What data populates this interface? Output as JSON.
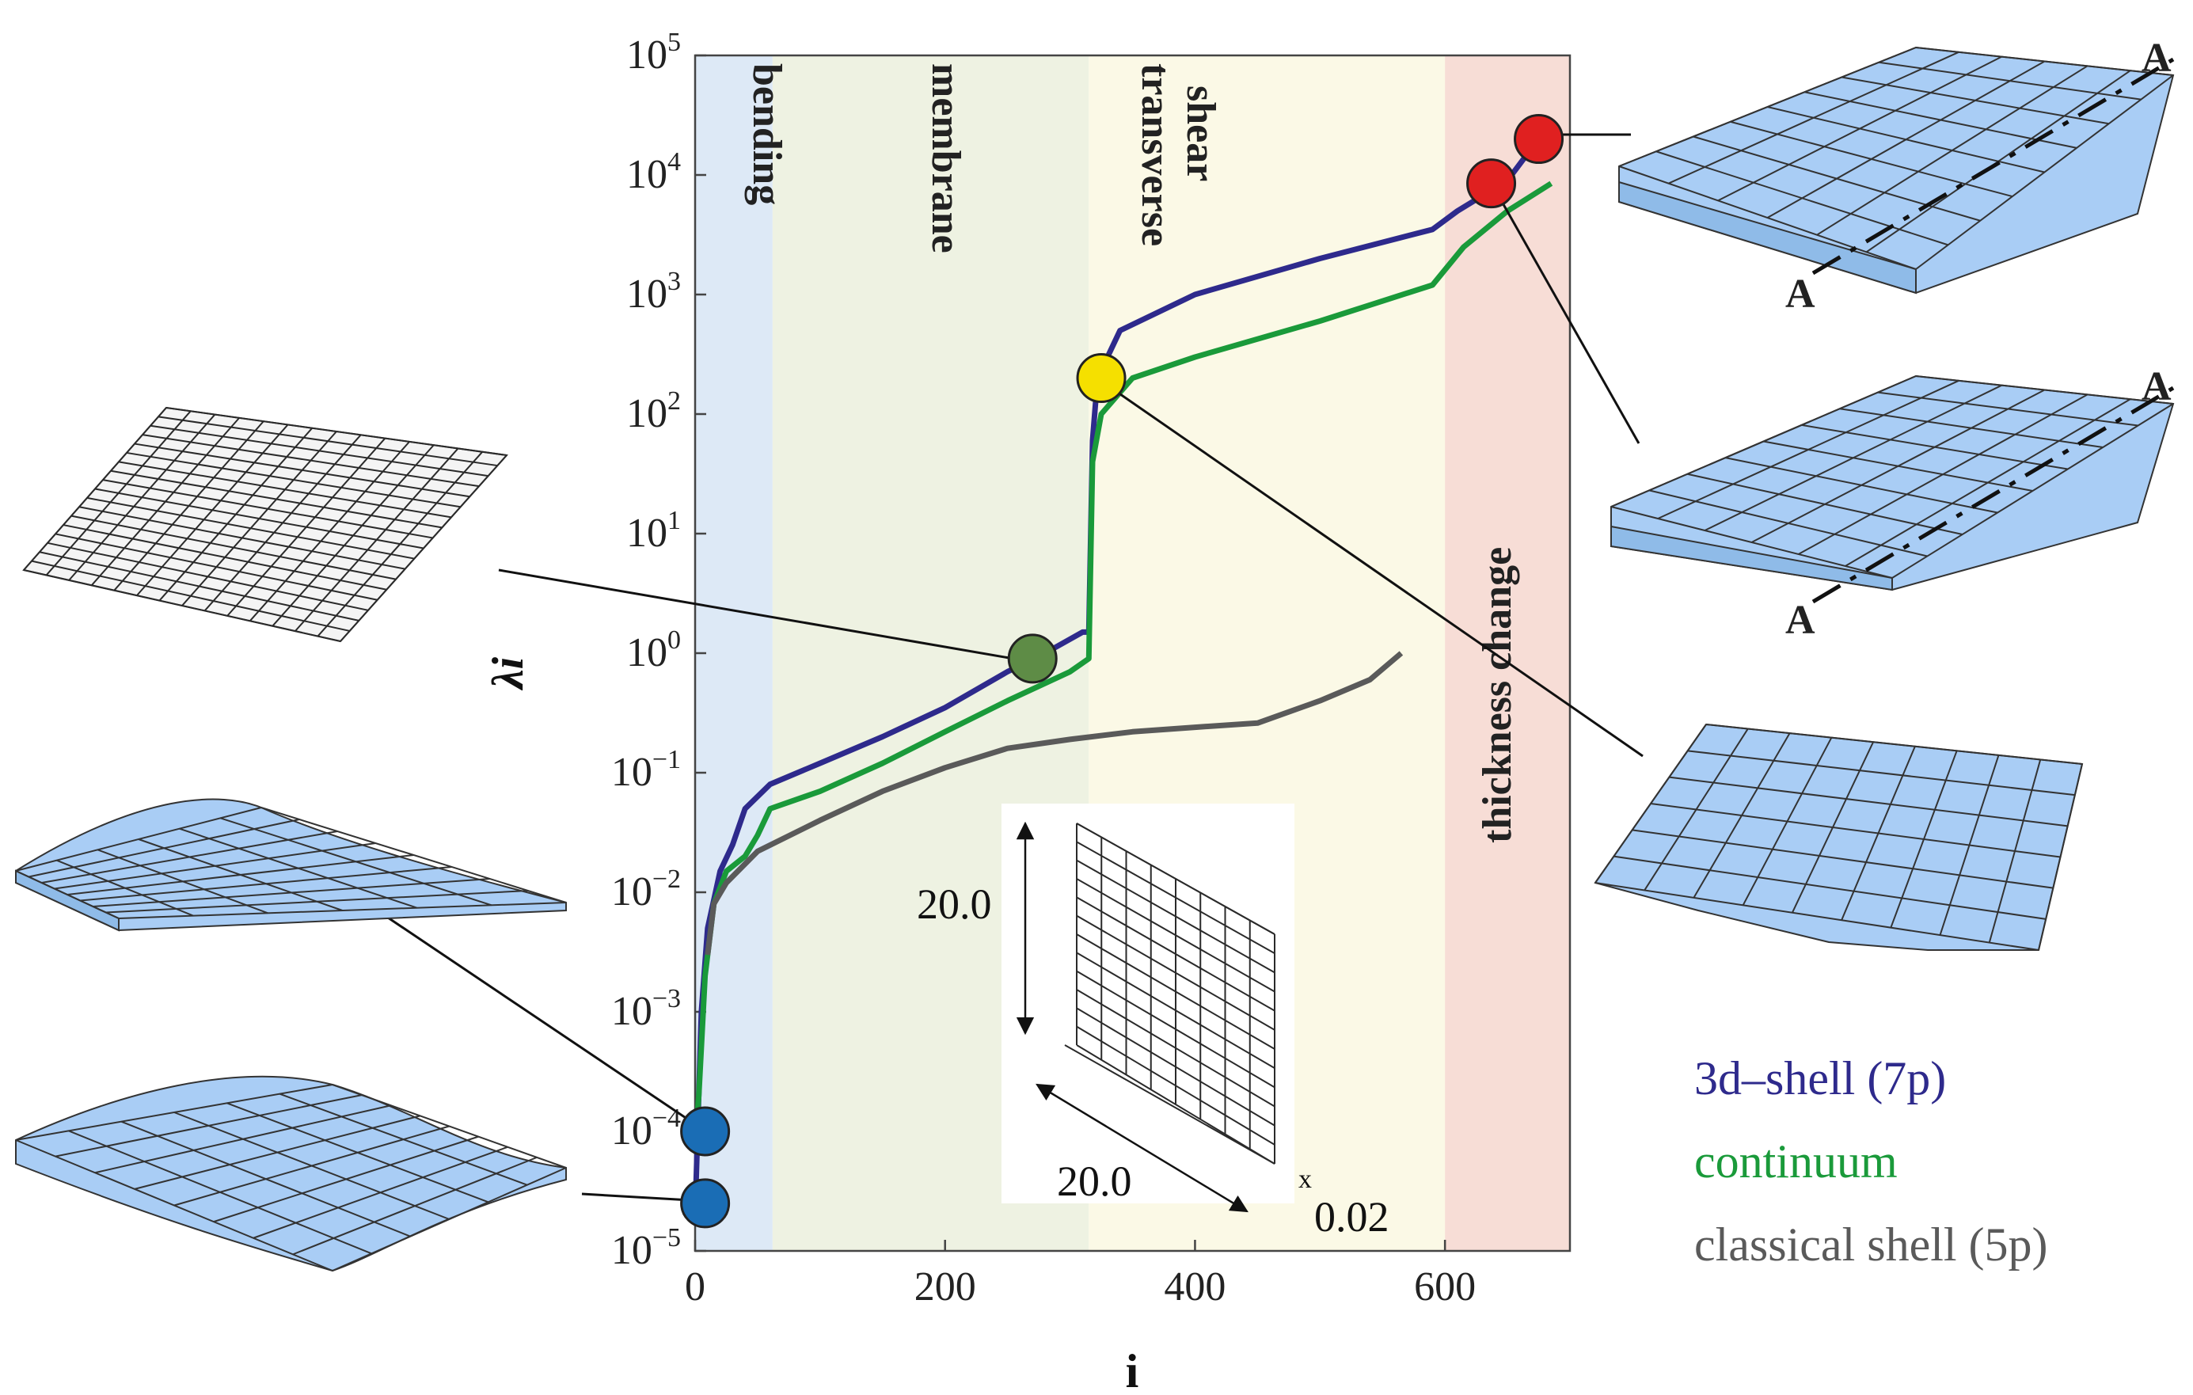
{
  "chart_data": {
    "type": "line",
    "xlabel": "i",
    "ylabel": "λi",
    "xlim": [
      0,
      700
    ],
    "ylim": [
      1e-05,
      100000
    ],
    "yscale": "log",
    "grid": false,
    "x_ticks": [
      "0",
      "200",
      "400",
      "600"
    ],
    "y_ticks": [
      {
        "base": "10",
        "exp": "5"
      },
      {
        "base": "10",
        "exp": "4"
      },
      {
        "base": "10",
        "exp": "3"
      },
      {
        "base": "10",
        "exp": "2"
      },
      {
        "base": "10",
        "exp": "1"
      },
      {
        "base": "10",
        "exp": "0"
      },
      {
        "base": "10",
        "exp": "−1"
      },
      {
        "base": "10",
        "exp": "−2"
      },
      {
        "base": "10",
        "exp": "−3"
      },
      {
        "base": "10",
        "exp": "−4"
      },
      {
        "base": "10",
        "exp": "−5"
      }
    ],
    "regions": [
      {
        "label": "bending",
        "x_range": [
          0,
          62
        ],
        "color": "#dde9f6"
      },
      {
        "label": "membrane",
        "x_range": [
          62,
          315
        ],
        "color": "#eef2e2"
      },
      {
        "label": "transverse",
        "label2": "shear",
        "x_range": [
          315,
          600
        ],
        "color": "#fbf9e6"
      },
      {
        "label": "thickness change",
        "x_range": [
          600,
          700
        ],
        "color": "#f7ddd6"
      }
    ],
    "series": [
      {
        "name": "3d–shell (7p)",
        "color": "#2e2a8c",
        "points": [
          [
            0,
            2e-05
          ],
          [
            2,
            0.0001
          ],
          [
            5,
            0.001
          ],
          [
            10,
            0.005
          ],
          [
            20,
            0.015
          ],
          [
            30,
            0.025
          ],
          [
            40,
            0.05
          ],
          [
            60,
            0.08
          ],
          [
            100,
            0.12
          ],
          [
            150,
            0.2
          ],
          [
            200,
            0.35
          ],
          [
            250,
            0.7
          ],
          [
            280,
            1.0
          ],
          [
            310,
            1.5
          ],
          [
            315,
            1.5
          ],
          [
            318,
            60
          ],
          [
            322,
            200
          ],
          [
            340,
            500
          ],
          [
            400,
            1000
          ],
          [
            500,
            2000
          ],
          [
            590,
            3500
          ],
          [
            610,
            5000
          ],
          [
            650,
            9000
          ],
          [
            675,
            20000
          ]
        ]
      },
      {
        "name": "continuum",
        "color": "#1a9a3a",
        "points": [
          [
            0,
            8e-05
          ],
          [
            3,
            0.0002
          ],
          [
            8,
            0.002
          ],
          [
            15,
            0.008
          ],
          [
            25,
            0.015
          ],
          [
            40,
            0.02
          ],
          [
            50,
            0.03
          ],
          [
            60,
            0.05
          ],
          [
            100,
            0.07
          ],
          [
            150,
            0.12
          ],
          [
            200,
            0.22
          ],
          [
            250,
            0.4
          ],
          [
            300,
            0.7
          ],
          [
            315,
            0.9
          ],
          [
            318,
            40
          ],
          [
            325,
            100
          ],
          [
            350,
            200
          ],
          [
            400,
            300
          ],
          [
            500,
            600
          ],
          [
            590,
            1200
          ],
          [
            615,
            2500
          ],
          [
            650,
            5000
          ],
          [
            685,
            8500
          ]
        ]
      },
      {
        "name": "classical shell (5p)",
        "color": "#5a5a5a",
        "points": [
          [
            10,
            0.003
          ],
          [
            15,
            0.008
          ],
          [
            25,
            0.012
          ],
          [
            50,
            0.022
          ],
          [
            100,
            0.04
          ],
          [
            150,
            0.07
          ],
          [
            200,
            0.11
          ],
          [
            250,
            0.16
          ],
          [
            300,
            0.19
          ],
          [
            350,
            0.22
          ],
          [
            400,
            0.24
          ],
          [
            450,
            0.26
          ],
          [
            500,
            0.4
          ],
          [
            540,
            0.6
          ],
          [
            565,
            1.0
          ]
        ]
      }
    ],
    "markers": [
      {
        "x": 8,
        "y": 0.0001,
        "color": "#1a6db5"
      },
      {
        "x": 8,
        "y": 2.5e-05,
        "color": "#1a6db5"
      },
      {
        "x": 270,
        "y": 0.9,
        "color": "#5e8c46"
      },
      {
        "x": 325,
        "y": 200,
        "color": "#f5e000"
      },
      {
        "x": 637,
        "y": 8500,
        "color": "#e02020"
      },
      {
        "x": 675,
        "y": 20000,
        "color": "#e02020"
      }
    ],
    "legend": {
      "placement": "bottom-right"
    },
    "inset": {
      "height_label": "20.0",
      "width_label": "20.0",
      "thickness_label": "0.02"
    },
    "mode_labels": {
      "a_top": "A",
      "a_bottom": "A"
    }
  }
}
